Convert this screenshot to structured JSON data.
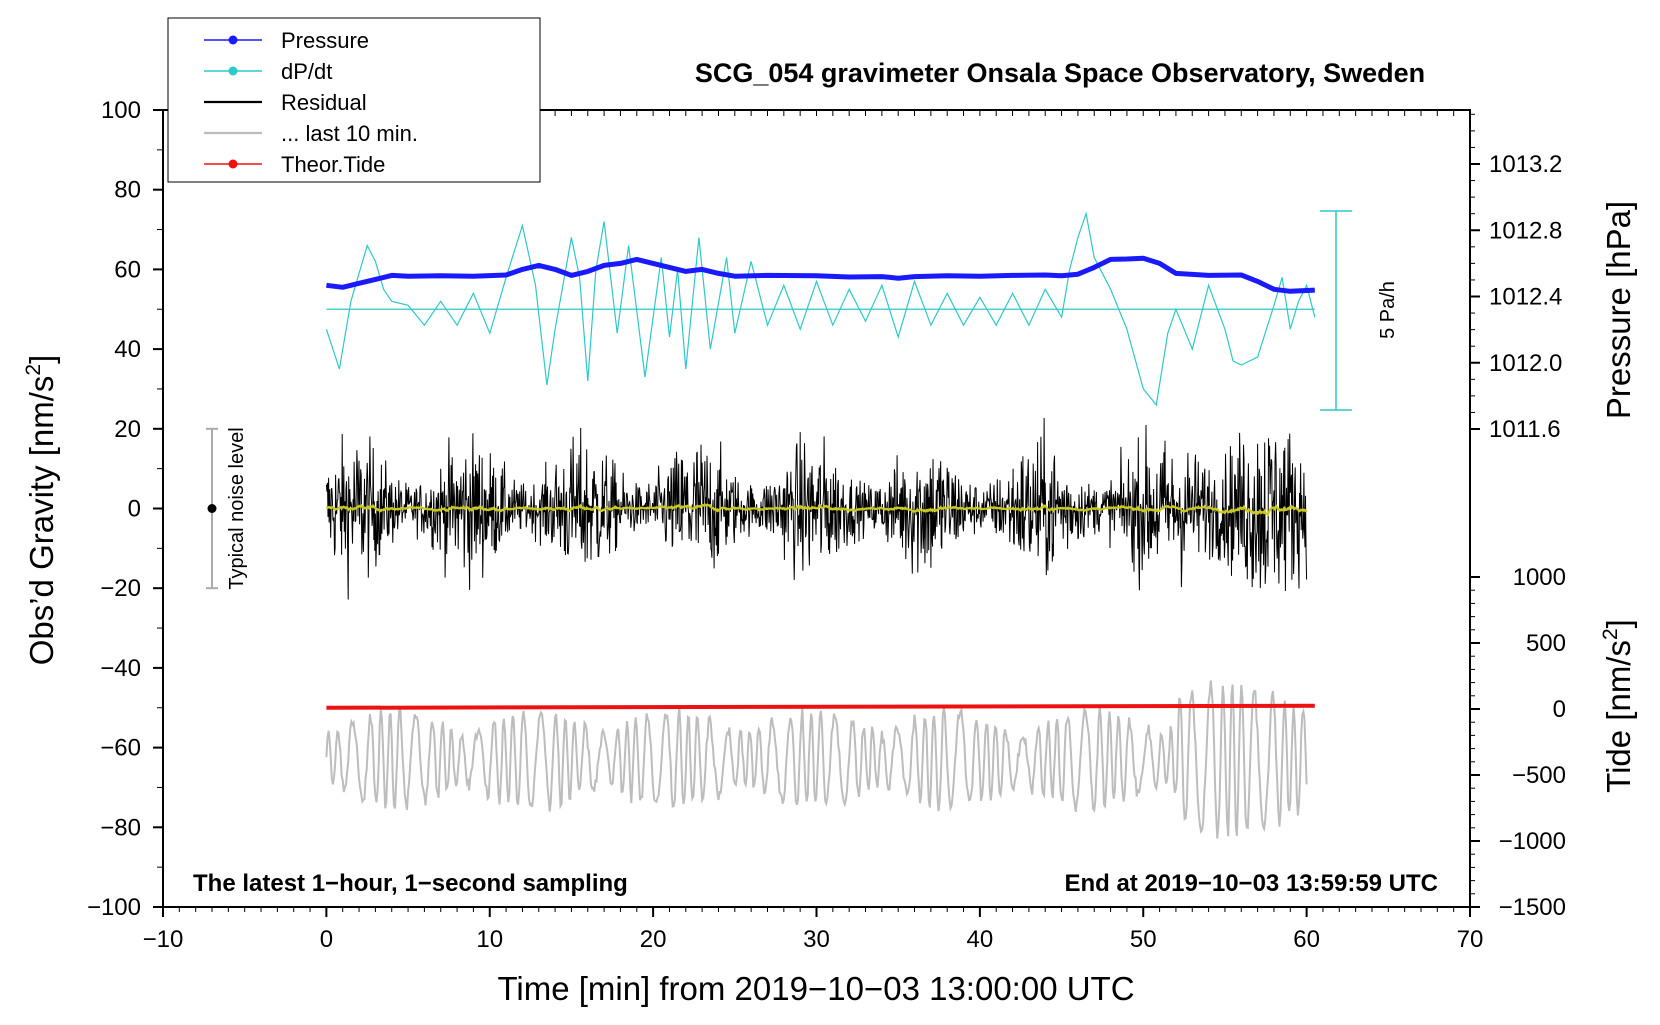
{
  "chart_data": {
    "type": "line",
    "title": "SCG_054 gravimeter Onsala Space Observatory, Sweden",
    "xlabel": "Time [min] from 2019−10−03 13:00:00 UTC",
    "ylabel": "Obs’d Gravity [nm/s²]",
    "ylabel_main": "Obs’d Gravity [nm/s",
    "ylabel_sup": "2",
    "ylabel_end": "]",
    "xlim": [
      -10,
      70
    ],
    "ylim": [
      -100,
      100
    ],
    "x_ticks": [
      "−10",
      "0",
      "10",
      "20",
      "30",
      "40",
      "50",
      "60",
      "70"
    ],
    "y_ticks": [
      "−100",
      "−80",
      "−60",
      "−40",
      "−20",
      "0",
      "20",
      "40",
      "60",
      "80",
      "100"
    ],
    "pressure_axis": {
      "label": "Pressure [hPa]",
      "ticks": [
        "1011.6",
        "1012.0",
        "1012.4",
        "1012.8",
        "1013.2"
      ],
      "values": [
        1011.6,
        1012.0,
        1012.4,
        1012.8,
        1013.2
      ]
    },
    "tide_axis": {
      "label_main": "Tide [nm/s",
      "label_sup": "2",
      "label_end": "]",
      "ticks": [
        "−1500",
        "−1000",
        "−500",
        "0",
        "500",
        "1000"
      ],
      "values": [
        -1500,
        -1000,
        -500,
        0,
        500,
        1000
      ]
    },
    "legend": [
      {
        "label": "Pressure",
        "color": "#1a1aff",
        "marker": true
      },
      {
        "label": "dP/dt",
        "color": "#2ec8c8",
        "marker": true
      },
      {
        "label": "Residual",
        "color": "#000000",
        "marker": false
      },
      {
        "label": "... last 10 min.",
        "color": "#bdbdbd",
        "marker": false
      },
      {
        "label": "Theor.Tide",
        "color": "#ee1111",
        "marker": true
      }
    ],
    "annotations": {
      "left_bottom": "The latest 1−hour, 1−second sampling",
      "right_bottom": "End at 2019−10−03 13:59:59 UTC",
      "noise": "Typical noise level",
      "scale_bar": "5 Pa/h"
    },
    "noise_bar": {
      "x": -7,
      "center": 0,
      "range": [
        -20,
        20
      ]
    },
    "pressure_series": {
      "x": [
        0,
        1,
        2,
        3,
        4,
        5,
        7,
        9,
        11,
        12,
        13,
        14,
        15,
        16,
        17,
        18,
        19,
        20,
        21,
        22,
        23,
        24,
        25,
        27,
        30,
        32,
        34,
        35,
        36,
        38,
        40,
        42,
        44,
        45,
        46,
        47,
        48,
        49,
        50,
        51,
        52,
        54,
        56,
        57,
        58,
        59,
        60,
        60.5
      ],
      "values": [
        56,
        55.5,
        56.5,
        57.5,
        58.5,
        58.3,
        58.4,
        58.3,
        58.6,
        60,
        61,
        60,
        58.5,
        59.5,
        61,
        61.5,
        62.5,
        61.5,
        60.5,
        59.5,
        60,
        59,
        58.3,
        58.5,
        58.4,
        58.1,
        58.2,
        57.8,
        58.2,
        58.4,
        58.3,
        58.5,
        58.6,
        58.4,
        58.8,
        60.5,
        62.5,
        62.6,
        62.8,
        61.5,
        59,
        58.5,
        58.6,
        57,
        55,
        54.5,
        54.7,
        54.8
      ]
    },
    "dpdt_series": {
      "baseline": 50,
      "x": [
        0,
        0.8,
        1.5,
        2.5,
        3,
        3.5,
        4,
        5,
        6,
        7,
        8,
        9,
        10,
        11,
        12,
        12.8,
        13.5,
        14,
        15,
        15.5,
        16,
        16.5,
        17,
        17.8,
        18.5,
        19.5,
        20.5,
        21,
        21.5,
        22,
        22.8,
        23.5,
        24.5,
        25,
        26,
        27,
        28,
        29,
        30,
        31,
        32,
        33,
        34,
        35,
        36,
        37,
        38,
        39,
        40,
        41,
        42,
        43,
        44,
        45,
        45.5,
        46,
        46.5,
        47,
        48,
        49,
        50,
        50.8,
        51.5,
        52,
        53,
        54,
        55,
        55.5,
        56,
        57,
        58,
        58.5,
        59,
        59.5,
        60,
        60.5
      ],
      "values": [
        45,
        35,
        52,
        66,
        62,
        55,
        52,
        51,
        46,
        52,
        46,
        54,
        44,
        58,
        71,
        56,
        31,
        45,
        68,
        58,
        32,
        60,
        72,
        44,
        66,
        33,
        63,
        43,
        60,
        35,
        68,
        40,
        63,
        44,
        62,
        46,
        56,
        45,
        57,
        46,
        55,
        47,
        56,
        43,
        57,
        46,
        54,
        46,
        53,
        46,
        54,
        46,
        55,
        48,
        60,
        68,
        74,
        63,
        55,
        45,
        30,
        26,
        44,
        50,
        40,
        56,
        45,
        37,
        36,
        38,
        51,
        58,
        45,
        52,
        56,
        48
      ]
    },
    "tide_series": {
      "x": [
        0,
        60.5
      ],
      "values": [
        -50,
        -49.5
      ]
    }
  }
}
